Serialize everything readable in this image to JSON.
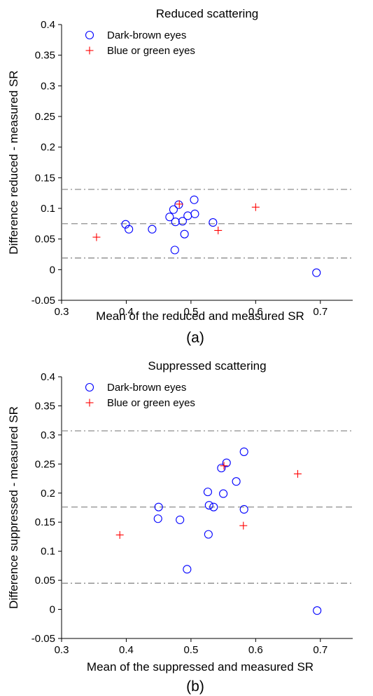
{
  "figure": {
    "panel_captions": [
      "(a)",
      "(b)"
    ]
  },
  "chart_data": [
    {
      "type": "scatter",
      "title": "Reduced scattering",
      "xlabel": "Mean of the reduced and measured SR",
      "ylabel": "Difference reduced - measured SR",
      "xlim": [
        0.3,
        0.75
      ],
      "ylim": [
        -0.05,
        0.4
      ],
      "xticks": [
        "0.3",
        "0.4",
        "0.5",
        "0.6",
        "0.7"
      ],
      "yticks": [
        "-0.05",
        "0",
        "0.05",
        "0.1",
        "0.15",
        "0.2",
        "0.25",
        "0.3",
        "0.35",
        "0.4"
      ],
      "grid": false,
      "legend_position": "top-left",
      "reference_lines": [
        {
          "style": "dash-dot",
          "y": 0.131
        },
        {
          "style": "dashed",
          "y": 0.075
        },
        {
          "style": "dash-dot",
          "y": 0.019
        }
      ],
      "series": [
        {
          "name": "Dark-brown eyes",
          "marker": "circle",
          "color": "#0000ff",
          "points": [
            [
              0.399,
              0.074
            ],
            [
              0.404,
              0.066
            ],
            [
              0.44,
              0.066
            ],
            [
              0.467,
              0.086
            ],
            [
              0.473,
              0.098
            ],
            [
              0.475,
              0.032
            ],
            [
              0.476,
              0.078
            ],
            [
              0.481,
              0.106
            ],
            [
              0.487,
              0.079
            ],
            [
              0.49,
              0.058
            ],
            [
              0.495,
              0.088
            ],
            [
              0.505,
              0.114
            ],
            [
              0.506,
              0.091
            ],
            [
              0.534,
              0.077
            ],
            [
              0.694,
              -0.005
            ]
          ]
        },
        {
          "name": "Blue or green eyes",
          "marker": "plus",
          "color": "#ff0000",
          "points": [
            [
              0.354,
              0.053
            ],
            [
              0.482,
              0.107
            ],
            [
              0.542,
              0.064
            ],
            [
              0.6,
              0.102
            ]
          ]
        }
      ]
    },
    {
      "type": "scatter",
      "title": "Suppressed scattering",
      "xlabel": "Mean of the suppressed and measured SR",
      "ylabel": "Difference suppressed - measured SR",
      "xlim": [
        0.3,
        0.75
      ],
      "ylim": [
        -0.05,
        0.4
      ],
      "xticks": [
        "0.3",
        "0.4",
        "0.5",
        "0.6",
        "0.7"
      ],
      "yticks": [
        "-0.05",
        "0",
        "0.05",
        "0.1",
        "0.15",
        "0.2",
        "0.25",
        "0.3",
        "0.35",
        "0.4"
      ],
      "grid": false,
      "legend_position": "top-left",
      "reference_lines": [
        {
          "style": "dash-dot",
          "y": 0.307
        },
        {
          "style": "dashed",
          "y": 0.176
        },
        {
          "style": "dash-dot",
          "y": 0.045
        }
      ],
      "series": [
        {
          "name": "Dark-brown eyes",
          "marker": "circle",
          "color": "#0000ff",
          "points": [
            [
              0.449,
              0.156
            ],
            [
              0.45,
              0.176
            ],
            [
              0.483,
              0.154
            ],
            [
              0.494,
              0.069
            ],
            [
              0.526,
              0.202
            ],
            [
              0.527,
              0.129
            ],
            [
              0.528,
              0.179
            ],
            [
              0.535,
              0.176
            ],
            [
              0.547,
              0.243
            ],
            [
              0.55,
              0.199
            ],
            [
              0.555,
              0.252
            ],
            [
              0.57,
              0.22
            ],
            [
              0.582,
              0.271
            ],
            [
              0.582,
              0.172
            ],
            [
              0.695,
              -0.002
            ]
          ]
        },
        {
          "name": "Blue or green eyes",
          "marker": "plus",
          "color": "#ff0000",
          "points": [
            [
              0.39,
              0.128
            ],
            [
              0.551,
              0.247
            ],
            [
              0.581,
              0.144
            ],
            [
              0.665,
              0.233
            ]
          ]
        }
      ]
    }
  ]
}
